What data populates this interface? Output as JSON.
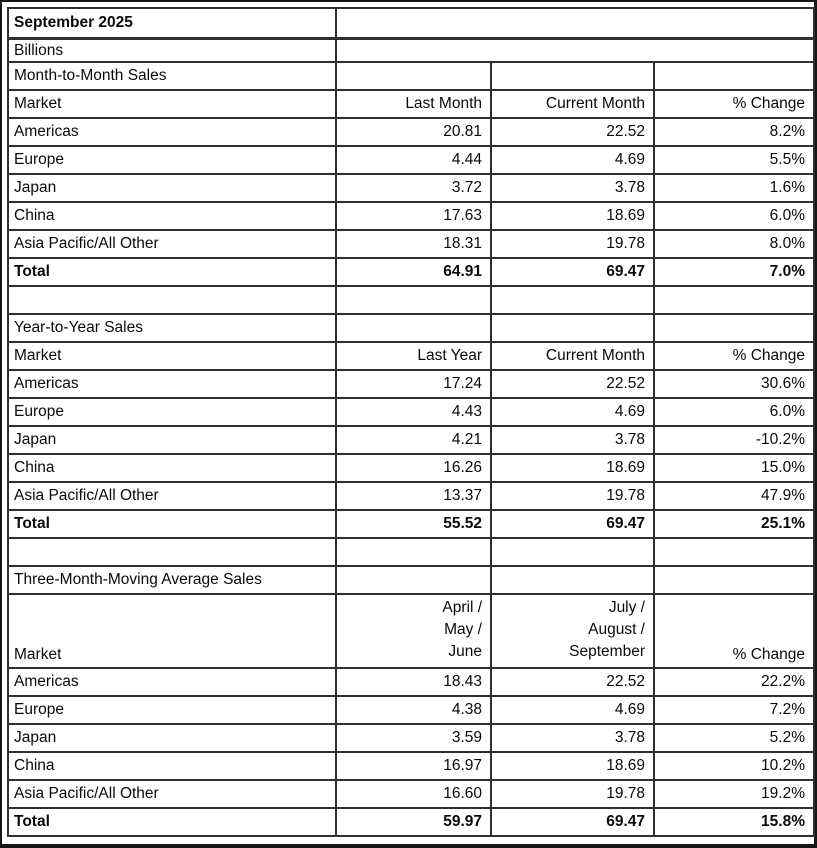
{
  "page": {
    "title": "September 2025",
    "unit_label": "Billions"
  },
  "colors": {
    "background": "#ffffff",
    "text": "#0a0a0a",
    "table_border": "#2f2f2f",
    "outer_frame": "#161616"
  },
  "sections": [
    {
      "title": "Month-to-Month Sales",
      "header": {
        "market": "Market",
        "prev": "Last Month",
        "curr": "Current Month",
        "change": "% Change"
      },
      "rows": [
        {
          "market": "Americas",
          "prev": "20.81",
          "curr": "22.52",
          "change": "8.2%"
        },
        {
          "market": "Europe",
          "prev": "4.44",
          "curr": "4.69",
          "change": "5.5%"
        },
        {
          "market": "Japan",
          "prev": "3.72",
          "curr": "3.78",
          "change": "1.6%"
        },
        {
          "market": "China",
          "prev": "17.63",
          "curr": "18.69",
          "change": "6.0%"
        },
        {
          "market": "Asia Pacific/All Other",
          "prev": "18.31",
          "curr": "19.78",
          "change": "8.0%"
        }
      ],
      "total": {
        "market": "Total",
        "prev": "64.91",
        "curr": "69.47",
        "change": "7.0%"
      }
    },
    {
      "title": "Year-to-Year Sales",
      "header": {
        "market": "Market",
        "prev": "Last Year",
        "curr": "Current Month",
        "change": "% Change"
      },
      "rows": [
        {
          "market": "Americas",
          "prev": "17.24",
          "curr": "22.52",
          "change": "30.6%"
        },
        {
          "market": "Europe",
          "prev": "4.43",
          "curr": "4.69",
          "change": "6.0%"
        },
        {
          "market": "Japan",
          "prev": "4.21",
          "curr": "3.78",
          "change": "-10.2%"
        },
        {
          "market": "China",
          "prev": "16.26",
          "curr": "18.69",
          "change": "15.0%"
        },
        {
          "market": "Asia Pacific/All Other",
          "prev": "13.37",
          "curr": "19.78",
          "change": "47.9%"
        }
      ],
      "total": {
        "market": "Total",
        "prev": "55.52",
        "curr": "69.47",
        "change": "25.1%"
      }
    },
    {
      "title": "Three-Month-Moving Average Sales",
      "header": {
        "market": "Market",
        "prev_lines": [
          "April /",
          "May /",
          "June"
        ],
        "curr_lines": [
          "July /",
          "August /",
          "September"
        ],
        "change": "% Change"
      },
      "rows": [
        {
          "market": "Americas",
          "prev": "18.43",
          "curr": "22.52",
          "change": "22.2%"
        },
        {
          "market": "Europe",
          "prev": "4.38",
          "curr": "4.69",
          "change": "7.2%"
        },
        {
          "market": "Japan",
          "prev": "3.59",
          "curr": "3.78",
          "change": "5.2%"
        },
        {
          "market": "China",
          "prev": "16.97",
          "curr": "18.69",
          "change": "10.2%"
        },
        {
          "market": "Asia Pacific/All Other",
          "prev": "16.60",
          "curr": "19.78",
          "change": "19.2%"
        }
      ],
      "total": {
        "market": "Total",
        "prev": "59.97",
        "curr": "69.47",
        "change": "15.8%"
      }
    }
  ]
}
